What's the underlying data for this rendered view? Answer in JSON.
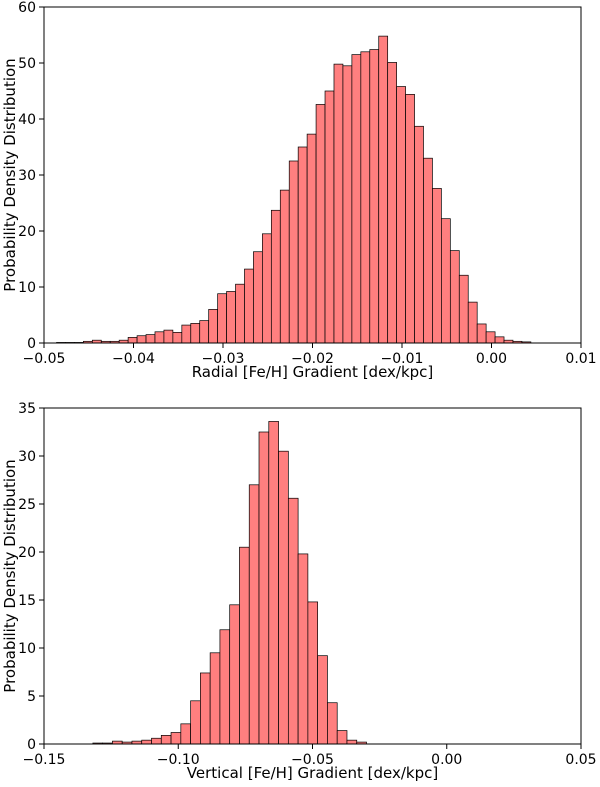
{
  "chart_data": [
    {
      "type": "bar",
      "histogram": true,
      "title": "",
      "xlabel": "Radial [Fe/H] Gradient [dex/kpc]",
      "ylabel": "Probability Density Distribution",
      "xlim": [
        -0.05,
        0.01
      ],
      "ylim": [
        0,
        60
      ],
      "xticks": [
        -0.05,
        -0.04,
        -0.03,
        -0.02,
        -0.01,
        0.0,
        0.01
      ],
      "xtick_labels": [
        "−0.05",
        "−0.04",
        "−0.03",
        "−0.02",
        "−0.01",
        "0.00",
        "0.01"
      ],
      "yticks": [
        0,
        10,
        20,
        30,
        40,
        50,
        60
      ],
      "ytick_labels": [
        "0",
        "10",
        "20",
        "30",
        "40",
        "50",
        "60"
      ],
      "bin_start": -0.0486,
      "bin_width": 0.001,
      "values": [
        0.1,
        0.1,
        0.1,
        0.3,
        0.5,
        0.3,
        0.3,
        0.5,
        1.0,
        1.3,
        1.5,
        2.0,
        2.3,
        1.9,
        3.2,
        3.5,
        4.0,
        6.0,
        8.8,
        9.2,
        10.5,
        13.2,
        16.3,
        19.5,
        23.7,
        27.3,
        32.5,
        35.0,
        37.3,
        42.6,
        45.0,
        49.8,
        49.5,
        51.5,
        52.0,
        52.4,
        54.8,
        50.1,
        45.8,
        44.4,
        38.7,
        33.0,
        27.6,
        22.2,
        16.5,
        12.1,
        7.3,
        3.4,
        2.0,
        1.1,
        0.5,
        0.3,
        0.2
      ]
    },
    {
      "type": "bar",
      "histogram": true,
      "title": "",
      "xlabel": "Vertical [Fe/H] Gradient [dex/kpc]",
      "ylabel": "Probability Density Distribution",
      "xlim": [
        -0.15,
        0.05
      ],
      "ylim": [
        0,
        35
      ],
      "xticks": [
        -0.15,
        -0.1,
        -0.05,
        0.0,
        0.05
      ],
      "xtick_labels": [
        "−0.15",
        "−0.10",
        "−0.05",
        "0.00",
        "0.05"
      ],
      "yticks": [
        0,
        5,
        10,
        15,
        20,
        25,
        30,
        35
      ],
      "ytick_labels": [
        "0",
        "5",
        "10",
        "15",
        "20",
        "25",
        "30",
        "35"
      ],
      "bin_start": -0.1318,
      "bin_width": 0.00364,
      "values": [
        0.1,
        0.1,
        0.3,
        0.2,
        0.3,
        0.4,
        0.6,
        0.9,
        1.2,
        2.1,
        4.5,
        7.4,
        9.5,
        11.9,
        14.5,
        20.5,
        27.0,
        32.5,
        33.6,
        30.5,
        25.6,
        19.8,
        14.8,
        9.2,
        4.3,
        1.4,
        0.4,
        0.2
      ]
    }
  ]
}
